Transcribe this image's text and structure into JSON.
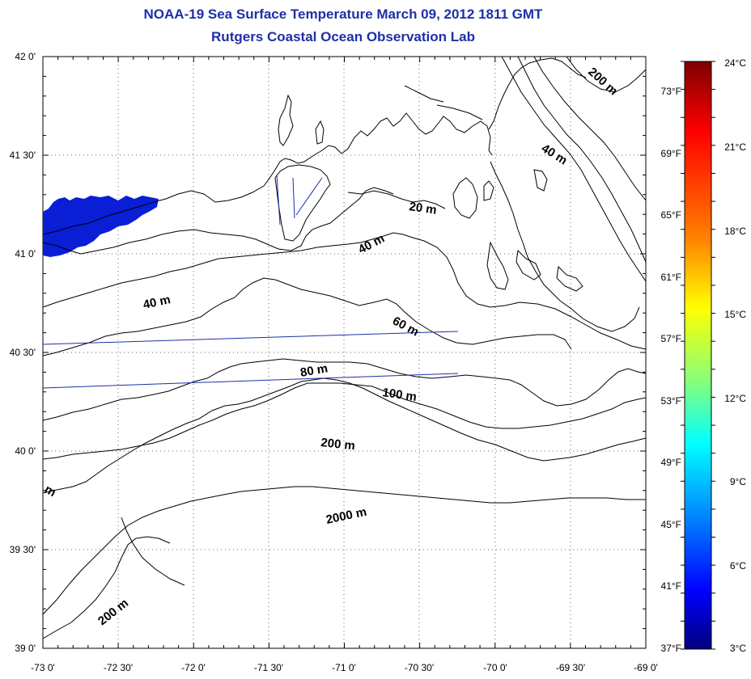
{
  "title": {
    "line1": "NOAA-19 Sea Surface Temperature March 09, 2012 1811 GMT",
    "line2": "Rutgers Coastal Ocean Observation Lab"
  },
  "axes": {
    "lat_labels": [
      "42 0'",
      "41 30'",
      "41 0'",
      "40 30'",
      "40 0'",
      "39 30'",
      "39 0'"
    ],
    "lon_labels": [
      "-73 0'",
      "-72 30'",
      "-72 0'",
      "-71 30'",
      "-71 0'",
      "-70 30'",
      "-70 0'",
      "-69 30'",
      "-69 0'"
    ],
    "fahrenheit_labels": [
      "73°F",
      "69°F",
      "65°F",
      "61°F",
      "57°F",
      "53°F",
      "49°F",
      "45°F",
      "41°F",
      "37°F"
    ]
  },
  "colorbar": {
    "celsius_labels": [
      "24°C",
      "21°C",
      "18°C",
      "15°C",
      "12°C",
      "9°C",
      "6°C",
      "3°C"
    ],
    "colors": [
      "#7f0000",
      "#ff0000",
      "#ff8000",
      "#ffff00",
      "#80ff80",
      "#00ffff",
      "#0080ff",
      "#0000ff",
      "#00007f"
    ]
  },
  "contours": {
    "labels": [
      "20 m",
      "40 m",
      "40 m",
      "40 m",
      "60 m",
      "80 m",
      "100 m",
      "200 m",
      "200 m",
      "200 m",
      "2000 m",
      "m"
    ]
  },
  "sst_patch_color": "#0a1ed6"
}
